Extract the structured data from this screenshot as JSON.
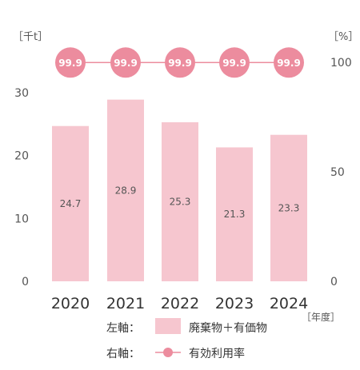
{
  "chart_data": {
    "type": "bar",
    "categories": [
      "2020",
      "2021",
      "2022",
      "2023",
      "2024"
    ],
    "series": [
      {
        "name": "廃棄物＋有価物",
        "axis": "left",
        "values": [
          24.7,
          28.9,
          25.3,
          21.3,
          23.3
        ]
      },
      {
        "name": "有効利用率",
        "axis": "right",
        "type": "line",
        "values": [
          99.9,
          99.9,
          99.9,
          99.9,
          99.9
        ]
      }
    ],
    "left_axis": {
      "unit": "［千t］",
      "ticks": [
        "0",
        "10",
        "20",
        "30"
      ],
      "ylim": [
        0,
        30
      ]
    },
    "right_axis": {
      "unit": "［%］",
      "ticks": [
        "0",
        "50",
        "100"
      ],
      "ylim": [
        0,
        100
      ]
    },
    "x_unit": "［年度］",
    "legend": {
      "left_title": "左軸：",
      "right_title": "右軸：",
      "placement": "bottom"
    },
    "colors": {
      "bar": "#f6c6cf",
      "rate": "#ec8c9e",
      "text": "#555555"
    }
  }
}
